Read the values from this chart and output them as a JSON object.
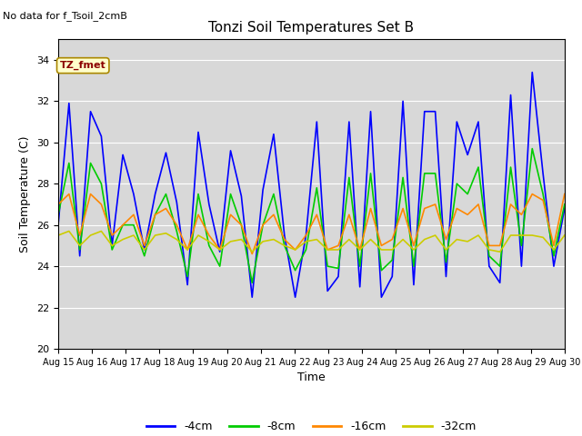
{
  "title": "Tonzi Soil Temperatures Set B",
  "no_data_label": "No data for f_Tsoil_2cmB",
  "legend_label": "TZ_fmet",
  "xlabel": "Time",
  "ylabel": "Soil Temperature (C)",
  "ylim": [
    20,
    35
  ],
  "yticks": [
    20,
    22,
    24,
    26,
    28,
    30,
    32,
    34
  ],
  "x_start_day": 15,
  "x_end_day": 30,
  "x_tick_days": [
    15,
    16,
    17,
    18,
    19,
    20,
    21,
    22,
    23,
    24,
    25,
    26,
    27,
    28,
    29,
    30
  ],
  "colors": {
    "4cm": "#0000ff",
    "8cm": "#00cc00",
    "16cm": "#ff8800",
    "32cm": "#cccc00"
  },
  "background_color": "#d8d8d8",
  "series_4cm": [
    26.0,
    31.9,
    24.5,
    31.5,
    30.3,
    25.0,
    29.4,
    27.5,
    24.8,
    27.5,
    29.5,
    27.1,
    23.1,
    30.5,
    27.0,
    24.7,
    29.6,
    27.4,
    22.5,
    27.7,
    30.4,
    25.5,
    22.5,
    25.5,
    31.0,
    22.8,
    23.5,
    31.0,
    23.0,
    31.5,
    22.5,
    23.5,
    32.0,
    23.1,
    31.5,
    31.5,
    23.5,
    31.0,
    29.4,
    31.0,
    24.0,
    23.2,
    32.3,
    24.0,
    33.4,
    28.5,
    24.0,
    26.8
  ],
  "series_8cm": [
    26.5,
    29.0,
    24.8,
    29.0,
    28.0,
    24.8,
    26.0,
    26.0,
    24.5,
    26.5,
    27.5,
    25.7,
    23.5,
    27.5,
    25.0,
    24.0,
    27.5,
    26.0,
    23.2,
    26.0,
    27.5,
    25.0,
    23.8,
    24.8,
    27.8,
    24.0,
    23.9,
    28.3,
    24.0,
    28.5,
    23.8,
    24.3,
    28.3,
    24.0,
    28.5,
    28.5,
    24.2,
    28.0,
    27.5,
    28.8,
    24.5,
    24.0,
    28.8,
    25.0,
    29.7,
    27.5,
    24.5,
    27.0
  ],
  "series_16cm": [
    27.0,
    27.5,
    25.5,
    27.5,
    27.0,
    25.5,
    26.0,
    26.5,
    25.0,
    26.5,
    26.8,
    26.0,
    24.8,
    26.5,
    25.5,
    24.8,
    26.5,
    26.0,
    24.6,
    26.0,
    26.5,
    25.3,
    24.8,
    25.5,
    26.5,
    24.8,
    25.0,
    26.5,
    24.8,
    26.8,
    25.0,
    25.3,
    26.8,
    25.0,
    26.8,
    27.0,
    25.3,
    26.8,
    26.5,
    27.0,
    25.0,
    25.0,
    27.0,
    26.5,
    27.5,
    27.2,
    25.0,
    27.5
  ],
  "series_32cm": [
    25.5,
    25.7,
    25.0,
    25.5,
    25.7,
    25.0,
    25.3,
    25.5,
    24.8,
    25.5,
    25.6,
    25.3,
    24.8,
    25.5,
    25.2,
    24.8,
    25.2,
    25.3,
    24.7,
    25.2,
    25.3,
    25.0,
    24.8,
    25.2,
    25.3,
    24.8,
    24.8,
    25.3,
    24.8,
    25.3,
    24.8,
    24.8,
    25.3,
    24.8,
    25.3,
    25.5,
    24.8,
    25.3,
    25.2,
    25.5,
    24.8,
    24.7,
    25.5,
    25.5,
    25.5,
    25.4,
    24.8,
    25.5
  ]
}
